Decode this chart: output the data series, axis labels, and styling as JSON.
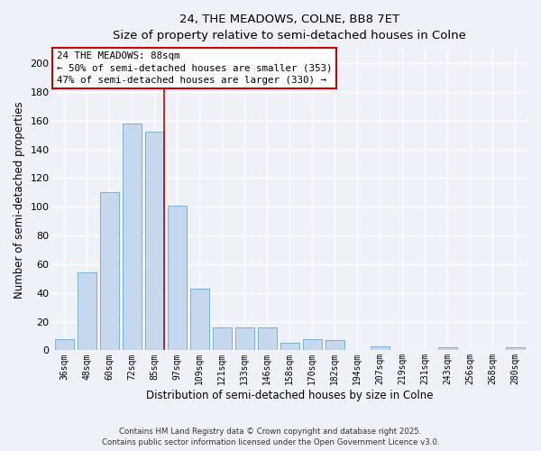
{
  "title": "24, THE MEADOWS, COLNE, BB8 7ET",
  "subtitle": "Size of property relative to semi-detached houses in Colne",
  "xlabel": "Distribution of semi-detached houses by size in Colne",
  "ylabel": "Number of semi-detached properties",
  "bar_labels": [
    "36sqm",
    "48sqm",
    "60sqm",
    "72sqm",
    "85sqm",
    "97sqm",
    "109sqm",
    "121sqm",
    "133sqm",
    "146sqm",
    "158sqm",
    "170sqm",
    "182sqm",
    "194sqm",
    "207sqm",
    "219sqm",
    "231sqm",
    "243sqm",
    "256sqm",
    "268sqm",
    "280sqm"
  ],
  "bar_values": [
    8,
    54,
    110,
    158,
    152,
    101,
    43,
    16,
    16,
    16,
    5,
    8,
    7,
    0,
    3,
    0,
    0,
    2,
    0,
    0,
    2
  ],
  "bar_color": "#c5d8ed",
  "bar_edge_color": "#7aafd4",
  "highlight_line_index": 4,
  "ylim": [
    0,
    210
  ],
  "yticks": [
    0,
    20,
    40,
    60,
    80,
    100,
    120,
    140,
    160,
    180,
    200
  ],
  "annotation_title": "24 THE MEADOWS: 88sqm",
  "annotation_line1": "← 50% of semi-detached houses are smaller (353)",
  "annotation_line2": "47% of semi-detached houses are larger (330) →",
  "annotation_box_color": "#ffffff",
  "annotation_box_edge": "#cc0000",
  "red_line_color": "#cc0000",
  "footer_line1": "Contains HM Land Registry data © Crown copyright and database right 2025.",
  "footer_line2": "Contains public sector information licensed under the Open Government Licence v3.0.",
  "background_color": "#eef2f8",
  "grid_color": "#ffffff",
  "figsize": [
    6.0,
    5.0
  ],
  "dpi": 100
}
